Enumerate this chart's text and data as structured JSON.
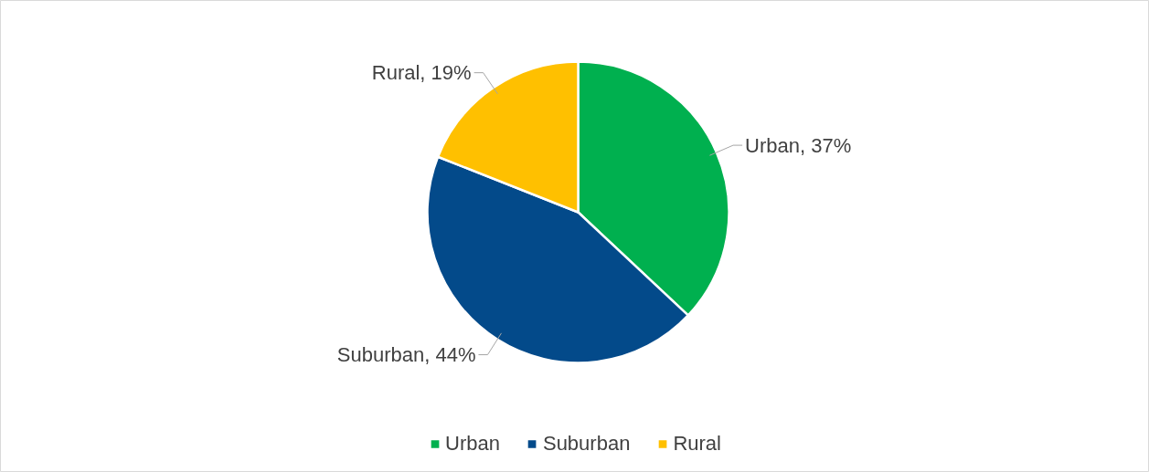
{
  "chart_data": {
    "type": "pie",
    "categories": [
      "Urban",
      "Suburban",
      "Rural"
    ],
    "values": [
      37,
      44,
      19
    ],
    "colors": [
      "#00b04f",
      "#034a8a",
      "#ffc000"
    ],
    "value_labels": [
      "Urban, 37%",
      "Suburban, 44%",
      "Rural, 19%"
    ],
    "legend": "bottom"
  }
}
